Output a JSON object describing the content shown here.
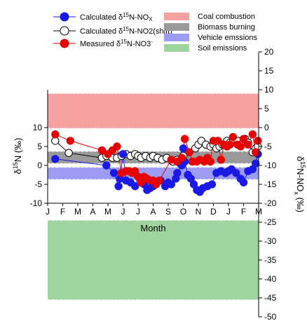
{
  "chart_data": {
    "type": "scatter",
    "title": "",
    "xlabel": "Month",
    "ylabel_left": "δ15N (‰)",
    "ylabel_right": "δ15N-NOx (‰)",
    "x_ticks": [
      "J",
      "F",
      "M",
      "A",
      "M",
      "J",
      "J",
      "A",
      "S",
      "O",
      "N",
      "D",
      "J",
      "F",
      "M"
    ],
    "left_axis": {
      "ylim": [
        -10,
        20
      ],
      "ticks": [
        -10,
        -5,
        0,
        5,
        10
      ]
    },
    "right_axis": {
      "ylim": [
        -50,
        20
      ],
      "ticks": [
        -50,
        -45,
        -40,
        -35,
        -30,
        -25,
        -20,
        -15,
        -10,
        -5,
        0,
        5,
        10,
        15,
        20
      ]
    },
    "grid": false,
    "legend_position": "top",
    "bands": [
      {
        "name": "Coal combustion",
        "y_range": [
          9.8,
          19
        ],
        "axis": "left",
        "color": "#f7a1a1"
      },
      {
        "name": "Biomass burning",
        "y_range": [
          0.5,
          3.7
        ],
        "axis": "left",
        "color": "#9a9a9a"
      },
      {
        "name": "Vehicle emssions",
        "y_range": [
          -3.7,
          -0.5
        ],
        "axis": "left",
        "color": "#9c9cf4"
      },
      {
        "name": "Soil emissions",
        "y_range": [
          -45.5,
          -24.5
        ],
        "axis": "right",
        "color": "#9fd49f"
      }
    ],
    "series": [
      {
        "name_parts": [
          "Calculated δ",
          "15",
          "N-NO",
          "X"
        ],
        "color": "#1a1ae6",
        "fill": "#1a1ae6",
        "x": [
          0.5,
          3.9,
          4.4,
          4.7,
          4.8,
          5.0,
          5.2,
          5.5,
          5.8,
          6.0,
          6.2,
          6.4,
          6.6,
          6.8,
          7.0,
          7.2,
          7.5,
          7.8,
          8.0,
          8.2,
          8.5,
          8.6,
          8.9,
          9.0,
          9.1,
          9.3,
          9.5,
          9.7,
          9.9,
          10.1,
          10.3,
          10.6,
          10.9,
          11.2,
          11.5,
          11.8,
          12.0,
          12.2,
          12.5,
          12.8,
          13.0,
          13.3,
          13.6,
          13.8,
          13.95
        ],
        "y": [
          1.7,
          0,
          -2.0,
          -5.5,
          -3.5,
          3.0,
          -4.0,
          -4.5,
          -5.5,
          -3.0,
          -4.5,
          -5.0,
          -6.5,
          -6.0,
          -5.5,
          -4.5,
          -4.0,
          -5.5,
          -4.5,
          -5.0,
          -3.5,
          -2.0,
          0,
          4.5,
          1.0,
          -2.5,
          -3.5,
          -5.0,
          -6.5,
          -7.0,
          -6.0,
          -5.5,
          -5.0,
          -2.0,
          -1.5,
          -2.0,
          -1.5,
          -1.0,
          -2.0,
          -3.5,
          -4.5,
          -1.5,
          -1.0,
          0.5,
          3.0
        ]
      },
      {
        "name_parts": [
          "Calculated δ",
          "15",
          "N-NO2(shift)",
          ""
        ],
        "color": "#000000",
        "fill": "#ffffff",
        "x": [
          0.5,
          1.4,
          3.6,
          3.9,
          4.3,
          4.6,
          4.9,
          5.2,
          5.5,
          5.8,
          6.0,
          6.2,
          6.5,
          6.8,
          7.0,
          7.3,
          7.6,
          7.9,
          8.3,
          8.6,
          8.8,
          9.0,
          9.4,
          9.8,
          10.0,
          10.2,
          10.5,
          10.8,
          11.0,
          11.2,
          11.4,
          11.6,
          11.9,
          12.1,
          12.3,
          12.6,
          12.8,
          13.1,
          13.3,
          13.6,
          13.8,
          13.95
        ],
        "y": [
          6.5,
          3.3,
          2.0,
          2.5,
          2.0,
          2.0,
          2.5,
          3.0,
          2.5,
          3.0,
          2.5,
          2.0,
          2.5,
          2.0,
          2.5,
          2.0,
          1.5,
          2.0,
          1.0,
          1.5,
          0.5,
          2.5,
          3.5,
          4.5,
          5.5,
          6.5,
          5.5,
          5.0,
          5.5,
          4.5,
          5.0,
          5.5,
          6.5,
          6.0,
          7.0,
          6.5,
          5.5,
          7.0,
          6.0,
          3.5,
          4.5,
          5.0
        ]
      },
      {
        "name_parts": [
          "Measured δ",
          "15",
          "N-NO3",
          "-"
        ],
        "color": "#e60000",
        "fill": "#e60000",
        "x": [
          0.5,
          1.5,
          3.6,
          4.0,
          4.3,
          4.6,
          4.9,
          5.2,
          5.4,
          5.6,
          5.8,
          6.0,
          6.2,
          6.4,
          6.6,
          6.8,
          7.0,
          7.2,
          7.4,
          8.2,
          8.6,
          8.9,
          9.1,
          9.4,
          9.6,
          9.9,
          10.1,
          10.4,
          10.6,
          10.8,
          11.0,
          11.3,
          11.5,
          11.7,
          11.9,
          12.1,
          12.3,
          12.6,
          12.8,
          13.0,
          13.3,
          13.6,
          13.8,
          13.95
        ],
        "y": [
          8.2,
          6.5,
          4.0,
          3.0,
          4.0,
          5.0,
          -2.0,
          -1.5,
          -1.5,
          -2.0,
          -1.5,
          -3.0,
          -4.5,
          -3.0,
          -3.5,
          -4.0,
          -4.0,
          -5.0,
          -4.0,
          1.5,
          1.0,
          2.0,
          7.0,
          3.5,
          1.0,
          1.0,
          1.5,
          1.0,
          2.0,
          1.0,
          6.5,
          6.5,
          1.5,
          5.5,
          5.0,
          5.5,
          7.5,
          5.5,
          5.0,
          7.0,
          5.5,
          8.2,
          3.5,
          6.5
        ]
      }
    ],
    "legend_items": [
      {
        "label": "Coal combustion"
      },
      {
        "label": "Biomass burning"
      },
      {
        "label": "Vehicle emssions"
      },
      {
        "label": "Soil emissions"
      }
    ]
  }
}
